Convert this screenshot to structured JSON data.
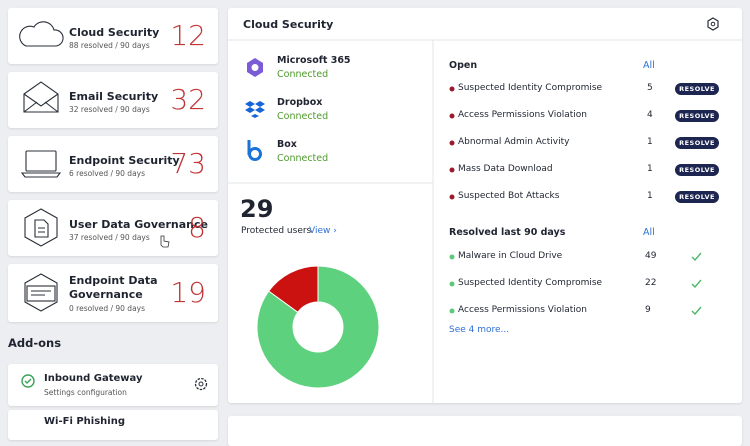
{
  "sidebar": {
    "cards": [
      {
        "title": "Cloud Security",
        "subtitle": "88 resolved / 90 days",
        "count": 12
      },
      {
        "title": "Email Security",
        "subtitle": "32 resolved / 90 days",
        "count": 32
      },
      {
        "title": "Endpoint Security",
        "subtitle": "6 resolved / 90 days",
        "count": 73
      },
      {
        "title": "User Data Governance",
        "subtitle": "37 resolved / 90 days",
        "count": 8
      },
      {
        "title": "Endpoint Data Governance",
        "subtitle": "0 resolved / 90 days",
        "count": 19
      }
    ],
    "addons_title": "Add-ons",
    "addons": [
      {
        "title": "Inbound Gateway",
        "subtitle": "Settings configuration"
      },
      {
        "title": "Wi-Fi Phishing"
      }
    ]
  },
  "panel": {
    "title": "Cloud Security",
    "integrations": [
      {
        "name": "Microsoft 365",
        "status": "Connected"
      },
      {
        "name": "Dropbox",
        "status": "Connected"
      },
      {
        "name": "Box",
        "status": "Connected"
      }
    ],
    "protected": {
      "count": 29,
      "label": "Protected users",
      "link": "View ›"
    },
    "donut": [
      {
        "color": "#cc1111",
        "value": 15
      },
      {
        "color": "#5ed17e",
        "value": 85
      }
    ],
    "open": {
      "title": "Open",
      "link": "All",
      "items": [
        {
          "name": "Suspected Identity Compromise",
          "count": 5,
          "action": "RESOLVE"
        },
        {
          "name": "Access Permissions Violation",
          "count": 4,
          "action": "RESOLVE"
        },
        {
          "name": "Abnormal Admin Activity",
          "count": 1,
          "action": "RESOLVE"
        },
        {
          "name": "Mass Data Download",
          "count": 1,
          "action": "RESOLVE"
        },
        {
          "name": "Suspected Bot Attacks",
          "count": 1,
          "action": "RESOLVE"
        }
      ]
    },
    "resolved": {
      "title": "Resolved last 90 days",
      "link": "All",
      "items": [
        {
          "name": "Malware in Cloud Drive",
          "count": 49
        },
        {
          "name": "Suspected Identity Compromise",
          "count": 22
        },
        {
          "name": "Access Permissions Violation",
          "count": 9
        }
      ],
      "more": "See 4 more..."
    }
  }
}
